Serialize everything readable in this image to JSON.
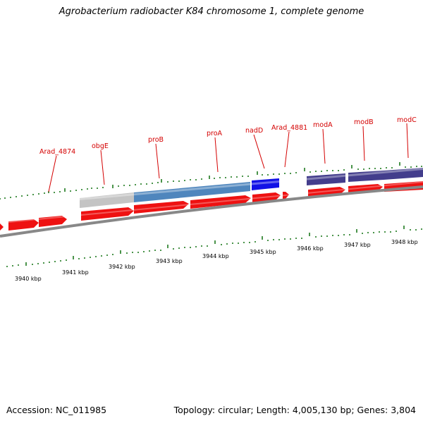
{
  "title": "Agrobacterium radiobacter K84 chromosome 1, complete genome",
  "footer": {
    "accession": "Accession: NC_011985",
    "summary": "Topology: circular; Length: 4,005,130 bp; Genes: 3,804"
  },
  "colors": {
    "gene_arrow": "#ee1111",
    "backbone": "#888888",
    "tick": "#1e7a1e",
    "label": "#d40000",
    "cog_gray": "#c4c4c4",
    "cog_steelblue": "#4f86bd",
    "cog_blue": "#1212e6",
    "cog_darkblue": "#433d8c"
  },
  "gene_labels": [
    "Arad_4874",
    "obgE",
    "proB",
    "proA",
    "nadD",
    "Arad_4881",
    "modA",
    "modB",
    "modC"
  ],
  "kbp_labels": [
    "3940 kbp",
    "3941 kbp",
    "3942 kbp",
    "3943 kbp",
    "3944 kbp",
    "3945 kbp",
    "3946 kbp",
    "3947 kbp",
    "3948 kbp"
  ]
}
